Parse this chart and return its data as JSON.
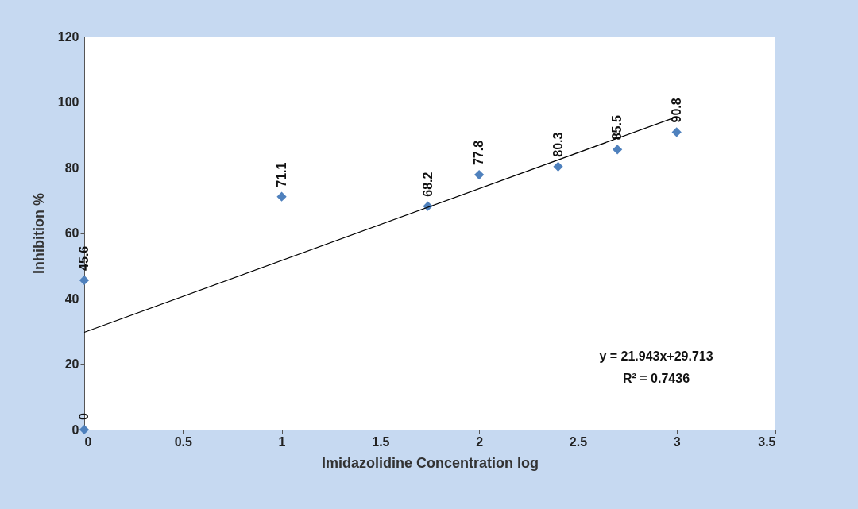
{
  "chart_data": {
    "type": "scatter",
    "xlabel": "Imidazolidine Concentration log",
    "ylabel": "Inhibition %",
    "series": [
      {
        "color": "#4f81bd",
        "marker": "diamond",
        "x": [
          0,
          0,
          1,
          1.74,
          2,
          2.4,
          2.7,
          3
        ],
        "values": [
          0,
          45.6,
          71.1,
          68.2,
          77.8,
          80.3,
          85.5,
          90.8
        ],
        "value_labels": [
          "0",
          "45.6",
          "71.1",
          "68.2",
          "77.8",
          "80.3",
          "85.5",
          "90.8"
        ]
      },
      {
        "type": "line",
        "color": "#000000",
        "x": [
          0,
          3
        ],
        "values": [
          29.7,
          95.5
        ]
      }
    ],
    "grid": false,
    "xlim": [
      0,
      3.5
    ],
    "xticks": [
      0,
      0.5,
      1,
      1.5,
      2,
      2.5,
      3,
      3.5
    ],
    "ylim": [
      0,
      120
    ],
    "yticks": [
      0,
      20,
      40,
      60,
      80,
      100,
      120
    ],
    "annotations": [
      "y = 21.943x+29.713",
      "R² = 0.7436"
    ]
  }
}
